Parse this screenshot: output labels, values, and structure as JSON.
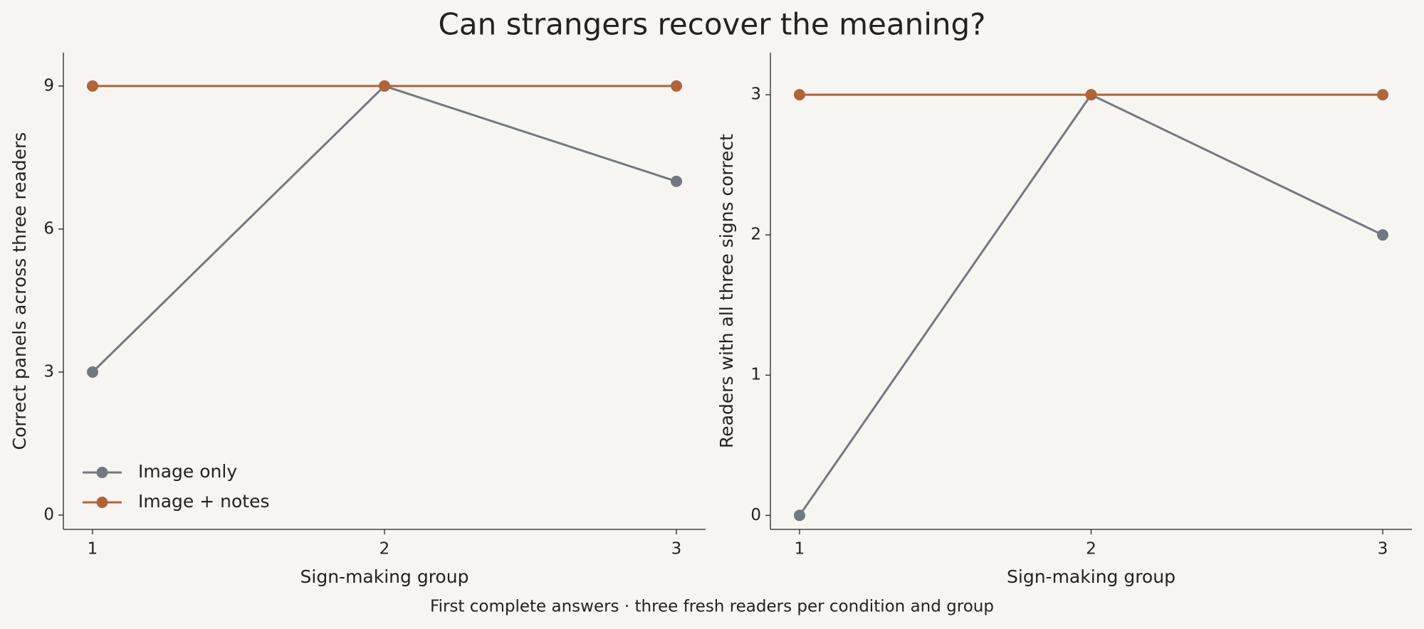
{
  "title": "Can strangers recover the meaning?",
  "caption": "First complete answers · three fresh readers per condition and group",
  "chart_data": [
    {
      "type": "line",
      "xlabel": "Sign-making group",
      "ylabel": "Correct panels across three readers",
      "x": [
        1,
        2,
        3
      ],
      "series": [
        {
          "name": "Image only",
          "color": "#737880",
          "values": [
            3,
            9,
            7
          ]
        },
        {
          "name": "Image + notes",
          "color": "#b0643a",
          "values": [
            9,
            9,
            9
          ]
        }
      ],
      "xlim": [
        0.9,
        3.1
      ],
      "xticks": [
        1,
        2,
        3
      ],
      "ylim": [
        -0.3,
        9.7
      ],
      "yticks": [
        0,
        3,
        6,
        9
      ],
      "legend": "lower left"
    },
    {
      "type": "line",
      "xlabel": "Sign-making group",
      "ylabel": "Readers with all three signs correct",
      "x": [
        1,
        2,
        3
      ],
      "series": [
        {
          "name": "Image only",
          "color": "#737880",
          "values": [
            0,
            3,
            2
          ]
        },
        {
          "name": "Image + notes",
          "color": "#b0643a",
          "values": [
            3,
            3,
            3
          ]
        }
      ],
      "xlim": [
        0.9,
        3.1
      ],
      "xticks": [
        1,
        2,
        3
      ],
      "ylim": [
        -0.1,
        3.3
      ],
      "yticks": [
        0,
        1,
        2,
        3
      ]
    }
  ]
}
